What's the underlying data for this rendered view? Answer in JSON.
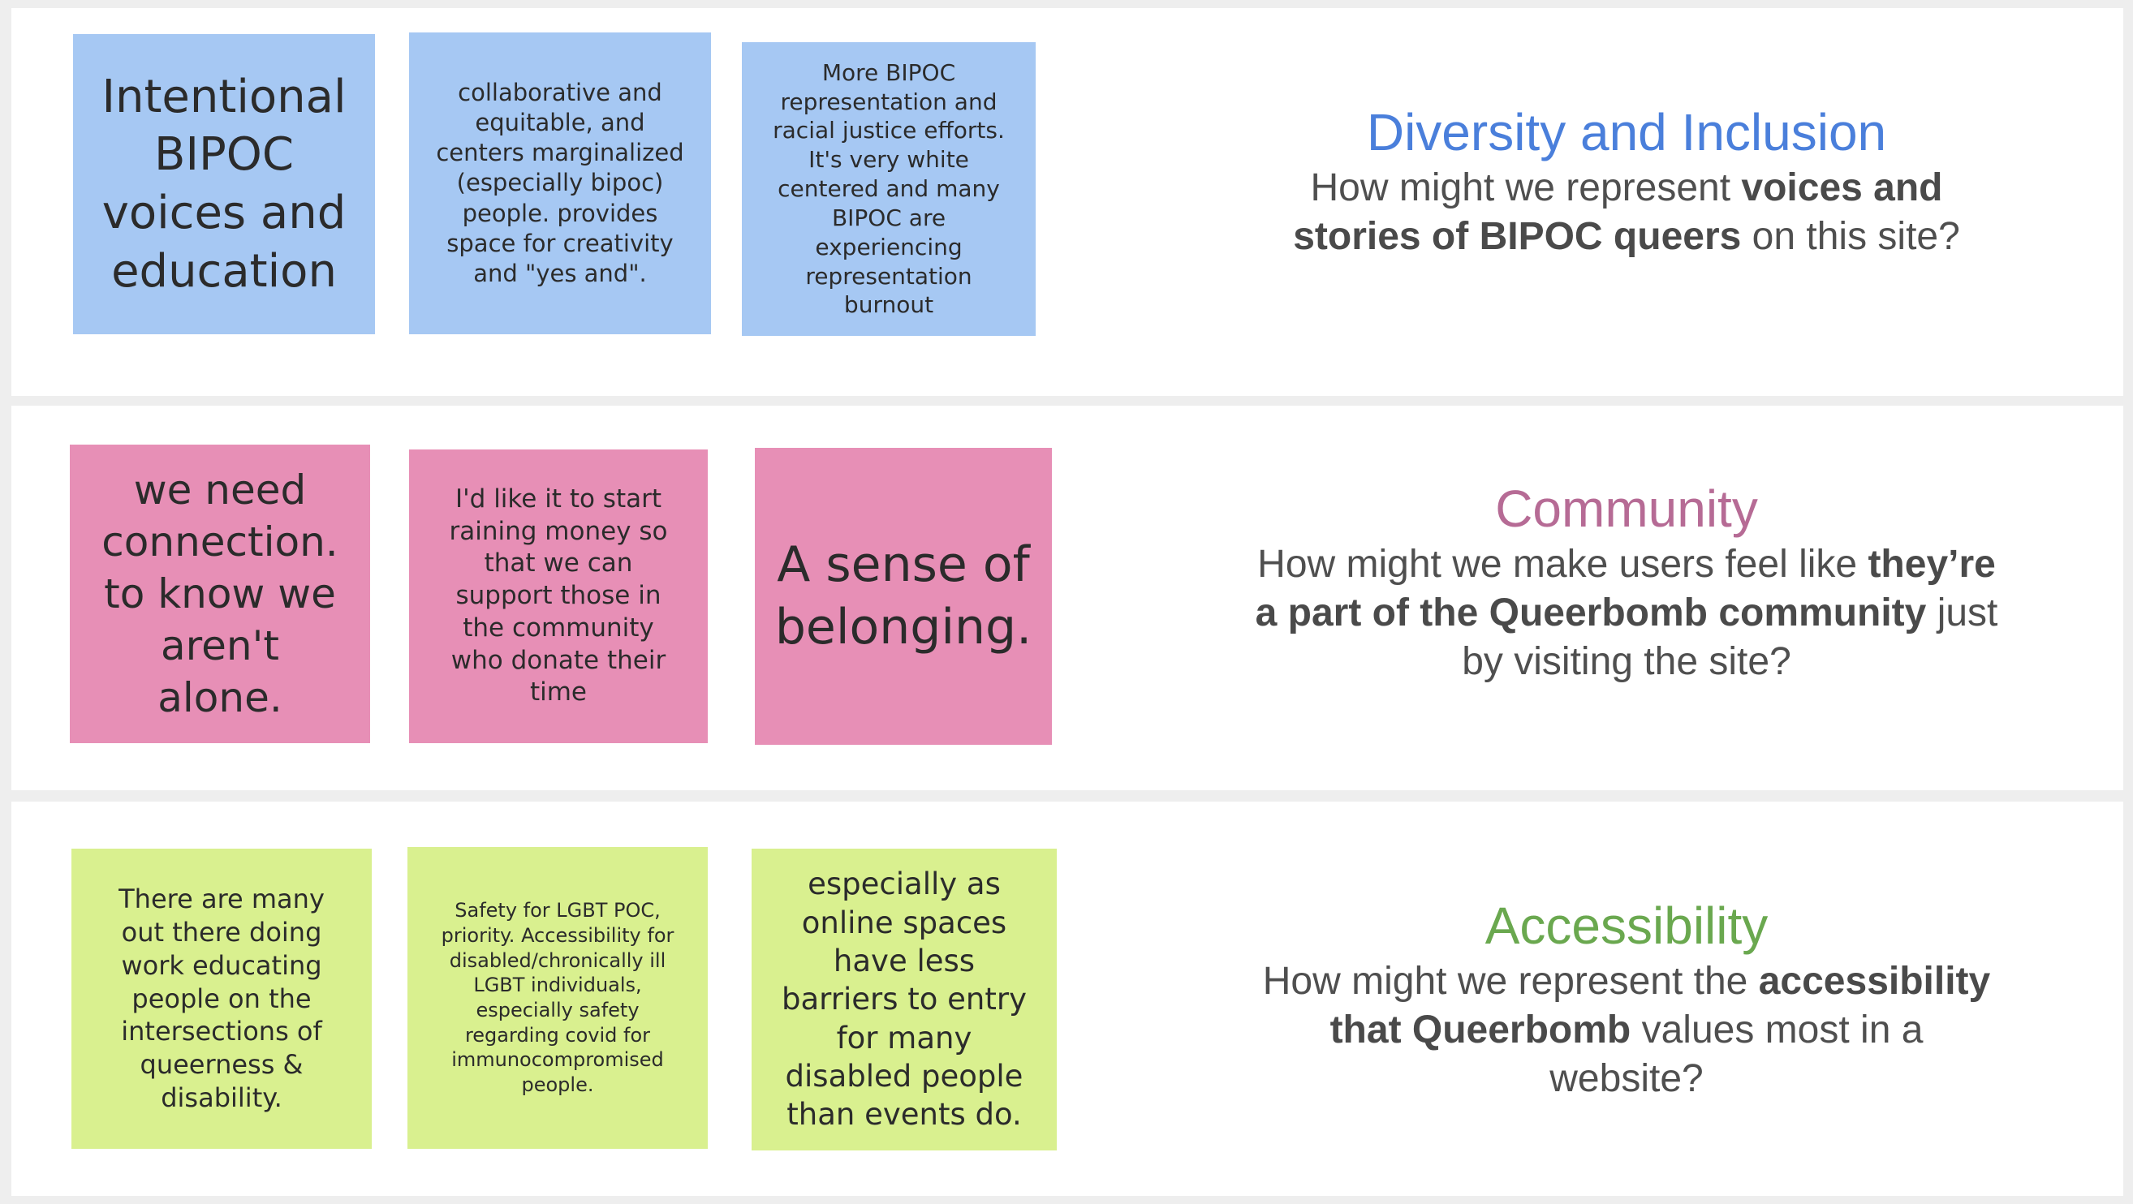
{
  "colors": {
    "diversity_title": "#4a7fdb",
    "community_title": "#b66b95",
    "accessibility_title": "#6aa84f",
    "note_blue": "#a6c8f3",
    "note_pink": "#e78fb6",
    "note_green": "#d9f08f"
  },
  "sections": [
    {
      "notes": [
        "Intentional BIPOC voices and education",
        "collaborative and equitable, and  centers marginalized (especially bipoc) people. provides space for creativity and \"yes and\".",
        "More BIPOC representation and racial justice efforts. It's very white centered and many BIPOC are experiencing representation burnout"
      ],
      "title": "Diversity and Inclusion",
      "question": {
        "pre": "How might we represent ",
        "bold": "voices and stories of BIPOC queers",
        "post": " on this site?"
      }
    },
    {
      "notes": [
        "we need connection. to know we aren't alone.",
        "I'd like it to start raining money so that we can support those in the community who donate their time",
        "A sense of belonging."
      ],
      "title": "Community",
      "question": {
        "pre": "How might we make users feel like ",
        "bold": "they’re a part of the Queerbomb community",
        "post": " just by visiting the site?"
      }
    },
    {
      "notes": [
        "There are many out there doing work educating people on the intersections of queerness & disability.",
        "Safety for LGBT POC, priority. Accessibility for disabled/chronically ill LGBT individuals, especially safety regarding covid for immunocompromised people.",
        "especially as online spaces have less barriers to entry for many disabled people than events do."
      ],
      "title": "Accessibility",
      "question": {
        "pre": "How might we represent the ",
        "bold": "accessibility that Queerbomb",
        "post": " values most in a website?"
      }
    }
  ]
}
